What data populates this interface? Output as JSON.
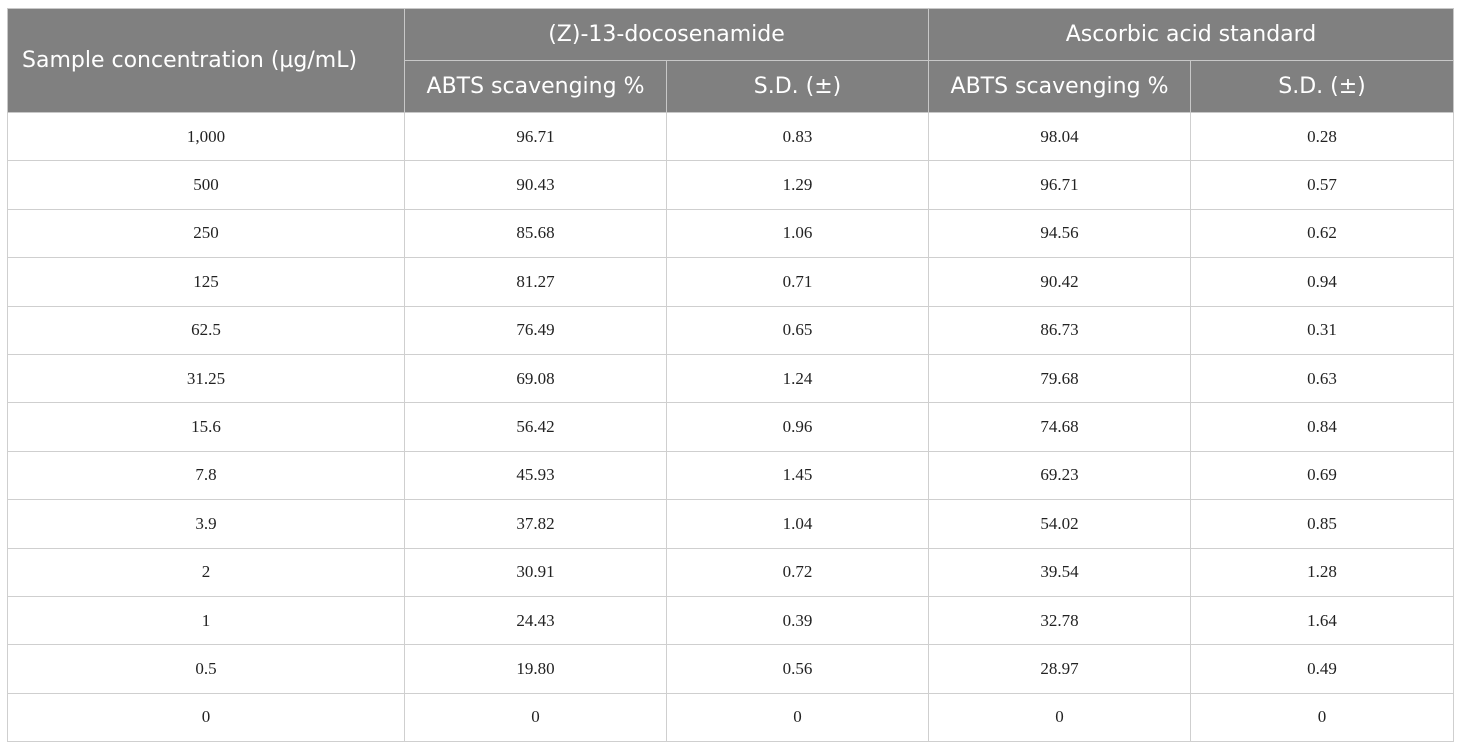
{
  "header": {
    "concentration": "Sample concentration (µg/mL)",
    "group1": "(Z)-13-docosenamide",
    "group2": "Ascorbic acid standard",
    "g1_col1": "ABTS scavenging %",
    "g1_col2": "S.D. (±)",
    "g2_col1": "ABTS scavenging %",
    "g2_col2": "S.D. (±)"
  },
  "rows": [
    [
      "1,000",
      "96.71",
      "0.83",
      "98.04",
      "0.28"
    ],
    [
      "500",
      "90.43",
      "1.29",
      "96.71",
      "0.57"
    ],
    [
      "250",
      "85.68",
      "1.06",
      "94.56",
      "0.62"
    ],
    [
      "125",
      "81.27",
      "0.71",
      "90.42",
      "0.94"
    ],
    [
      "62.5",
      "76.49",
      "0.65",
      "86.73",
      "0.31"
    ],
    [
      "31.25",
      "69.08",
      "1.24",
      "79.68",
      "0.63"
    ],
    [
      "15.6",
      "56.42",
      "0.96",
      "74.68",
      "0.84"
    ],
    [
      "7.8",
      "45.93",
      "1.45",
      "69.23",
      "0.69"
    ],
    [
      "3.9",
      "37.82",
      "1.04",
      "54.02",
      "0.85"
    ],
    [
      "2",
      "30.91",
      "0.72",
      "39.54",
      "1.28"
    ],
    [
      "1",
      "24.43",
      "0.39",
      "32.78",
      "1.64"
    ],
    [
      "0.5",
      "19.80",
      "0.56",
      "28.97",
      "0.49"
    ],
    [
      "0",
      "0",
      "0",
      "0",
      "0"
    ]
  ]
}
